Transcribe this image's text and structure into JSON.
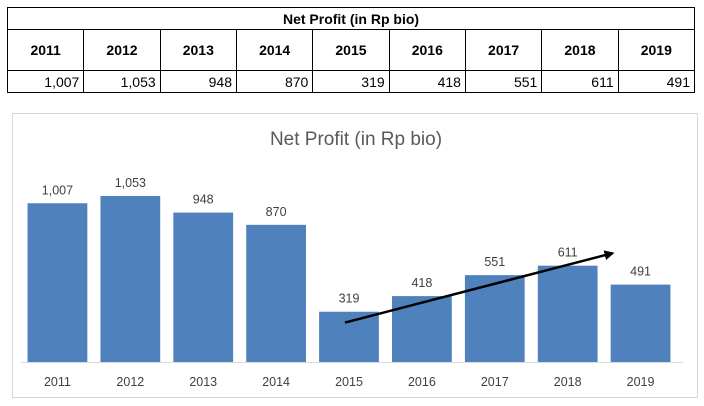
{
  "table": {
    "title": "Net Profit (in Rp bio)",
    "years": [
      "2011",
      "2012",
      "2013",
      "2014",
      "2015",
      "2016",
      "2017",
      "2018",
      "2019"
    ],
    "values": [
      "1,007",
      "1,053",
      "948",
      "870",
      "319",
      "418",
      "551",
      "611",
      "491"
    ]
  },
  "chart_data": {
    "type": "bar",
    "title": "Net Profit (in Rp bio)",
    "xlabel": "",
    "ylabel": "",
    "categories": [
      "2011",
      "2012",
      "2013",
      "2014",
      "2015",
      "2016",
      "2017",
      "2018",
      "2019"
    ],
    "values": [
      1007,
      1053,
      948,
      870,
      319,
      418,
      551,
      611,
      491
    ],
    "data_labels": [
      "1,007",
      "1,053",
      "948",
      "870",
      "319",
      "418",
      "551",
      "611",
      "491"
    ],
    "ylim": [
      0,
      1200
    ],
    "grid": false,
    "legend": "none",
    "bar_color": "#4f81bd",
    "annotation": {
      "type": "trend-arrow",
      "from": {
        "x": "2015",
        "y": 250
      },
      "to": {
        "x": "2019",
        "y": 690
      },
      "color": "#000000"
    }
  }
}
